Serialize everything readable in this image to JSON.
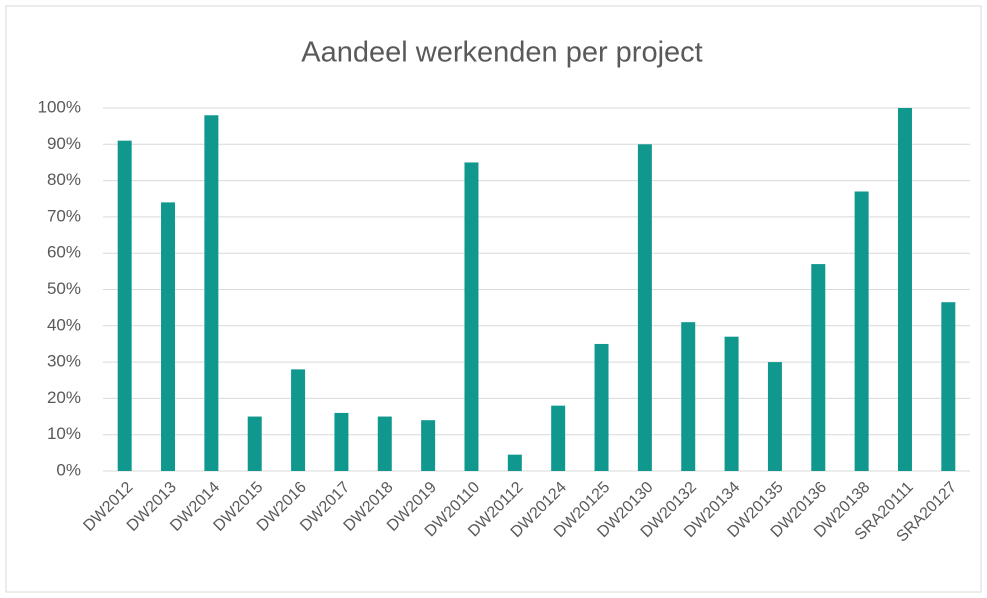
{
  "chart_data": {
    "type": "bar",
    "title": "Aandeel werkenden per project",
    "categories": [
      "DW2012",
      "DW2013",
      "DW2014",
      "DW2015",
      "DW2016",
      "DW2017",
      "DW2018",
      "DW2019",
      "DW20110",
      "DW20112",
      "DW20124",
      "DW20125",
      "DW20130",
      "DW20132",
      "DW20134",
      "DW20135",
      "DW20136",
      "DW20138",
      "SRA20111",
      "SRA20127"
    ],
    "values": [
      91,
      74,
      98,
      15,
      28,
      16,
      15,
      14,
      85,
      4.5,
      18,
      35,
      90,
      41,
      37,
      30,
      57,
      77,
      100,
      46.5
    ],
    "color": "#10988f",
    "ylim": [
      0,
      100
    ],
    "yticks": [
      {
        "value": 0,
        "label": "0%"
      },
      {
        "value": 10,
        "label": "10%"
      },
      {
        "value": 20,
        "label": "20%"
      },
      {
        "value": 30,
        "label": "30%"
      },
      {
        "value": 40,
        "label": "40%"
      },
      {
        "value": 50,
        "label": "50%"
      },
      {
        "value": 60,
        "label": "60%"
      },
      {
        "value": 70,
        "label": "70%"
      },
      {
        "value": 80,
        "label": "80%"
      },
      {
        "value": 90,
        "label": "90%"
      },
      {
        "value": 100,
        "label": "100%"
      }
    ],
    "grid": true
  }
}
